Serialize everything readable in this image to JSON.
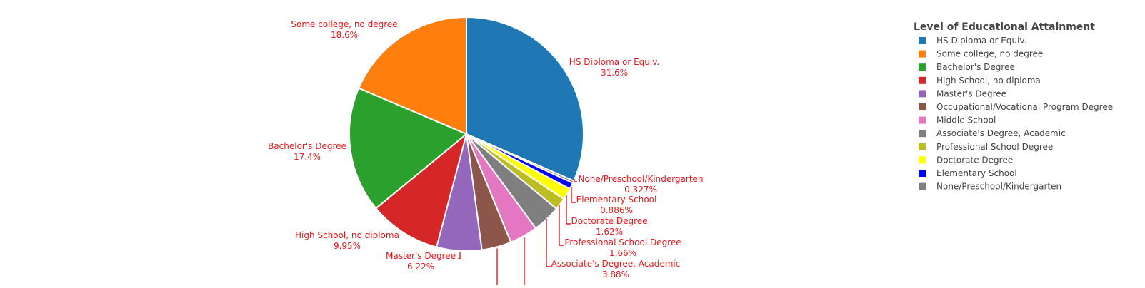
{
  "chart_data": {
    "type": "pie",
    "title": "",
    "slices": [
      {
        "label": "HS Diploma or Equiv.",
        "value": 31.6,
        "pct_label": "31.6%",
        "color": "#1f77b4"
      },
      {
        "label": "None/Preschool/Kindergarten",
        "value": 0.327,
        "pct_label": "0.327%",
        "color": "#7f7f7f"
      },
      {
        "label": "Elementary School",
        "value": 0.886,
        "pct_label": "0.886%",
        "color": "#0000ff"
      },
      {
        "label": "Doctorate Degree",
        "value": 1.62,
        "pct_label": "1.62%",
        "color": "#ffff00"
      },
      {
        "label": "Professional School Degree",
        "value": 1.66,
        "pct_label": "1.66%",
        "color": "#bcbd22"
      },
      {
        "label": "Associate's Degree, Academic",
        "value": 3.88,
        "pct_label": "3.88%",
        "color": "#7f7f7f"
      },
      {
        "label": "Middle School",
        "value": 3.89,
        "pct_label": "",
        "color": "#e377c2"
      },
      {
        "label": "Occupational/Vocational Program Degree",
        "value": 4.09,
        "pct_label": "",
        "color": "#8c564b"
      },
      {
        "label": "Master's Degree",
        "value": 6.22,
        "pct_label": "6.22%",
        "color": "#9467bd"
      },
      {
        "label": "High School, no diploma",
        "value": 9.95,
        "pct_label": "9.95%",
        "color": "#d62728"
      },
      {
        "label": "Bachelor's Degree",
        "value": 17.4,
        "pct_label": "17.4%",
        "color": "#2ca02c"
      },
      {
        "label": "Some college, no degree",
        "value": 18.6,
        "pct_label": "18.6%",
        "color": "#ff7f0e"
      }
    ],
    "legend": {
      "title": "Level of Educational Attainment",
      "position": "right",
      "items": [
        {
          "label": "HS Diploma or Equiv.",
          "color": "#1f77b4"
        },
        {
          "label": "Some college, no degree",
          "color": "#ff7f0e"
        },
        {
          "label": "Bachelor's Degree",
          "color": "#2ca02c"
        },
        {
          "label": "High School, no diploma",
          "color": "#d62728"
        },
        {
          "label": "Master's Degree",
          "color": "#9467bd"
        },
        {
          "label": "Occupational/Vocational Program Degree",
          "color": "#8c564b"
        },
        {
          "label": "Middle School",
          "color": "#e377c2"
        },
        {
          "label": "Associate's Degree, Academic",
          "color": "#7f7f7f"
        },
        {
          "label": "Professional School Degree",
          "color": "#bcbd22"
        },
        {
          "label": "Doctorate Degree",
          "color": "#ffff00"
        },
        {
          "label": "Elementary School",
          "color": "#0000ff"
        },
        {
          "label": "None/Preschool/Kindergarten",
          "color": "#7f7f7f"
        }
      ]
    },
    "label_color": "#e8191c"
  }
}
